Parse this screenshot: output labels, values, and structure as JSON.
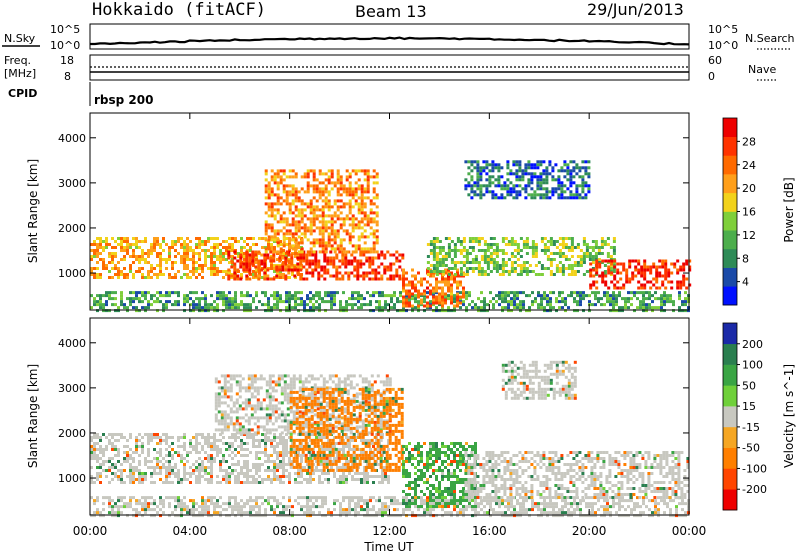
{
  "header": {
    "station": "Hokkaido (fitACF)",
    "beam": "Beam 13",
    "date": "29/Jun/2013"
  },
  "noise_panel": {
    "left_label": "N.Sky",
    "right_label": "N.Search",
    "left_ticks": [
      "10^5",
      "10^0"
    ],
    "right_ticks": [
      "10^5",
      "10^0"
    ]
  },
  "freq_panel": {
    "left_label_1": "Freq.",
    "left_label_2": "[MHz]",
    "right_label": "Nave",
    "left_ticks": [
      "18",
      "8"
    ],
    "right_ticks": [
      "60",
      "0"
    ]
  },
  "cpid": {
    "label": "CPID",
    "value": "rbsp 200"
  },
  "colors": {
    "power_scale": [
      "#0010ff",
      "#1a4aa8",
      "#2e8b57",
      "#4cae4c",
      "#7fcf3a",
      "#f2d21b",
      "#ff9f1a",
      "#ff6a00",
      "#ff3300",
      "#ee0000"
    ],
    "velocity_scale": [
      "#1b2aa8",
      "#2a7f4f",
      "#3aa544",
      "#6fd03a",
      "#c8c8c0",
      "#f5a623",
      "#ff7f00",
      "#ff4500",
      "#ee0000"
    ],
    "gray": "#c8c8c0"
  },
  "chart_data": [
    {
      "type": "heatmap",
      "panel": "power",
      "xlabel": "",
      "ylabel": "Slant Range [km]",
      "x_ticks": [
        "00:00",
        "04:00",
        "08:00",
        "12:00",
        "16:00",
        "20:00",
        "00:00"
      ],
      "x_range_hours": [
        0,
        24
      ],
      "y_range_km": [
        180,
        4550
      ],
      "y_ticks": [
        1000,
        2000,
        3000,
        4000
      ],
      "colorbar": {
        "label": "Power [dB]",
        "ticks": [
          4,
          8,
          12,
          16,
          20,
          24,
          28
        ],
        "range": [
          0,
          32
        ]
      },
      "features": [
        {
          "hours": [
            0.0,
            24.0
          ],
          "km": [
            200,
            600
          ],
          "power_db": 10
        },
        {
          "hours": [
            0.0,
            8.5
          ],
          "km": [
            900,
            1800
          ],
          "power_db": 20
        },
        {
          "hours": [
            5.5,
            12.5
          ],
          "km": [
            900,
            1500
          ],
          "power_db": 27
        },
        {
          "hours": [
            7.0,
            11.5
          ],
          "km": [
            1500,
            3300
          ],
          "power_db": 22
        },
        {
          "hours": [
            12.5,
            15.0
          ],
          "km": [
            300,
            1100
          ],
          "power_db": 24
        },
        {
          "hours": [
            13.5,
            21.0
          ],
          "km": [
            1000,
            1800
          ],
          "power_db": 14
        },
        {
          "hours": [
            15.0,
            20.0
          ],
          "km": [
            2700,
            3500
          ],
          "power_db": 6
        },
        {
          "hours": [
            20.0,
            24.0
          ],
          "km": [
            700,
            1300
          ],
          "power_db": 28
        }
      ]
    },
    {
      "type": "heatmap",
      "panel": "velocity",
      "xlabel": "Time UT",
      "ylabel": "Slant Range [km]",
      "x_ticks": [
        "00:00",
        "04:00",
        "08:00",
        "12:00",
        "16:00",
        "20:00",
        "00:00"
      ],
      "x_range_hours": [
        0,
        24
      ],
      "y_range_km": [
        180,
        4550
      ],
      "y_ticks": [
        1000,
        2000,
        3000,
        4000
      ],
      "colorbar": {
        "label": "Velocity [m s^-1]",
        "ticks": [
          200,
          100,
          50,
          15,
          -15,
          -50,
          -100,
          -200
        ],
        "range": [
          -250,
          250
        ]
      },
      "features": [
        {
          "hours": [
            0.0,
            24.0
          ],
          "km": [
            200,
            600
          ],
          "velocity": -5
        },
        {
          "hours": [
            0.0,
            12.0
          ],
          "km": [
            900,
            2000
          ],
          "velocity": 0
        },
        {
          "hours": [
            5.0,
            12.0
          ],
          "km": [
            2000,
            3300
          ],
          "velocity": 0
        },
        {
          "hours": [
            8.0,
            12.5
          ],
          "km": [
            1200,
            3000
          ],
          "velocity": -60
        },
        {
          "hours": [
            12.5,
            15.5
          ],
          "km": [
            400,
            1800
          ],
          "velocity": 40
        },
        {
          "hours": [
            15.0,
            24.0
          ],
          "km": [
            600,
            1600
          ],
          "velocity": 0
        },
        {
          "hours": [
            16.5,
            19.5
          ],
          "km": [
            2800,
            3600
          ],
          "velocity": 0
        }
      ]
    }
  ]
}
